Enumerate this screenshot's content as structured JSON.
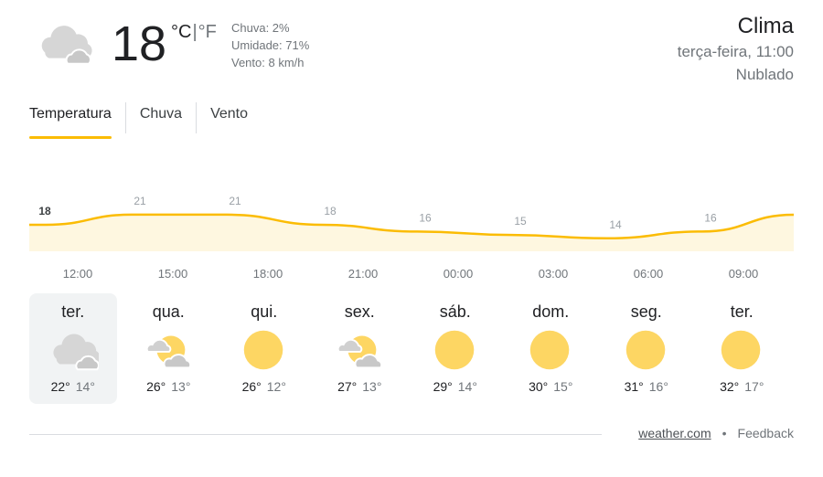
{
  "current": {
    "icon": "cloudy-icon",
    "temperature": "18",
    "unit_c": "°C",
    "unit_sep": "|",
    "unit_f": "°F",
    "details": [
      "Chuva: 2%",
      "Umidade: 71%",
      "Vento: 8 km/h"
    ]
  },
  "location": {
    "title": "Clima",
    "datetime": "terça-feira, 11:00",
    "condition": "Nublado"
  },
  "tabs": [
    {
      "label": "Temperatura",
      "active": true
    },
    {
      "label": "Chuva"
    },
    {
      "label": "Vento"
    }
  ],
  "colors": {
    "accent": "#fbbc04",
    "fill": "#fef7e0",
    "sun": "#fdd663",
    "cloud": "#d6d6d6"
  },
  "chart_data": {
    "type": "area",
    "x": [
      "12:00",
      "15:00",
      "18:00",
      "21:00",
      "00:00",
      "03:00",
      "06:00",
      "09:00"
    ],
    "values": [
      18,
      21,
      21,
      18,
      16,
      15,
      14,
      16
    ],
    "data_labels": [
      "18",
      "21",
      "21",
      "18",
      "16",
      "15",
      "14",
      "16"
    ]
  },
  "days": [
    {
      "name": "ter.",
      "icon": "cloudy-icon",
      "hi": "22°",
      "lo": "14°",
      "selected": true
    },
    {
      "name": "qua.",
      "icon": "partly-cloudy-icon",
      "hi": "26°",
      "lo": "13°"
    },
    {
      "name": "qui.",
      "icon": "sunny-icon",
      "hi": "26°",
      "lo": "12°"
    },
    {
      "name": "sex.",
      "icon": "partly-cloudy-icon",
      "hi": "27°",
      "lo": "13°"
    },
    {
      "name": "sáb.",
      "icon": "sunny-icon",
      "hi": "29°",
      "lo": "14°"
    },
    {
      "name": "dom.",
      "icon": "sunny-icon",
      "hi": "30°",
      "lo": "15°"
    },
    {
      "name": "seg.",
      "icon": "sunny-icon",
      "hi": "31°",
      "lo": "16°"
    },
    {
      "name": "ter.",
      "icon": "sunny-icon",
      "hi": "32°",
      "lo": "17°"
    }
  ],
  "footer": {
    "source": "weather.com",
    "dot": "•",
    "feedback": "Feedback"
  }
}
